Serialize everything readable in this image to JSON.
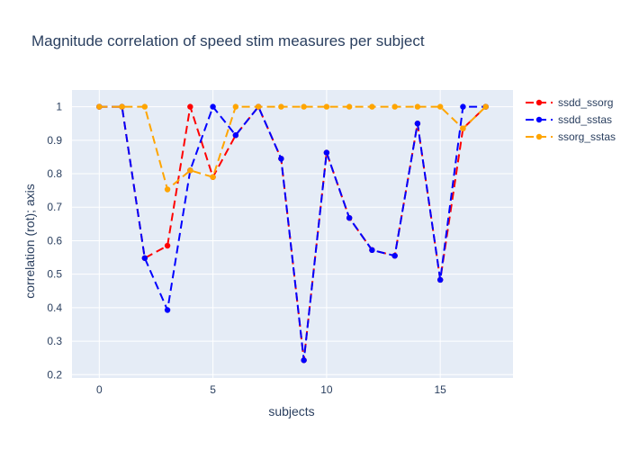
{
  "chart_data": {
    "type": "line",
    "title": "Magnitude correlation of speed stim measures per subject",
    "xlabel": "subjects",
    "ylabel": "correlation (rot); axis",
    "x": [
      0,
      1,
      2,
      3,
      4,
      5,
      6,
      7,
      8,
      9,
      10,
      11,
      12,
      13,
      14,
      15,
      16,
      17
    ],
    "xlim": [
      -1.2,
      18.2
    ],
    "ylim": [
      0.19,
      1.05
    ],
    "xticks": [
      0,
      5,
      10,
      15
    ],
    "yticks": [
      0.2,
      0.3,
      0.4,
      0.5,
      0.6,
      0.7,
      0.8,
      0.9,
      1
    ],
    "ytick_labels": [
      "0.2",
      "0.3",
      "0.4",
      "0.5",
      "0.6",
      "0.7",
      "0.8",
      "0.9",
      "1"
    ],
    "grid": true,
    "legend_position": "top-right",
    "series": [
      {
        "name": "ssdd_ssorg",
        "color": "#ff0000",
        "values": [
          1,
          1,
          0.548,
          0.585,
          1,
          0.79,
          0.915,
          1,
          0.845,
          0.243,
          0.863,
          0.668,
          0.572,
          0.555,
          0.95,
          0.483,
          0.935,
          1
        ]
      },
      {
        "name": "ssdd_sstas",
        "color": "#0000ff",
        "values": [
          1,
          1,
          0.548,
          0.393,
          0.81,
          1,
          0.915,
          1,
          0.845,
          0.243,
          0.863,
          0.668,
          0.572,
          0.555,
          0.95,
          0.483,
          1,
          1
        ]
      },
      {
        "name": "ssorg_sstas",
        "color": "#ffa500",
        "values": [
          1,
          1,
          1,
          0.753,
          0.81,
          0.79,
          1,
          1,
          1,
          1,
          1,
          1,
          1,
          1,
          1,
          1,
          0.935,
          1
        ]
      }
    ]
  }
}
